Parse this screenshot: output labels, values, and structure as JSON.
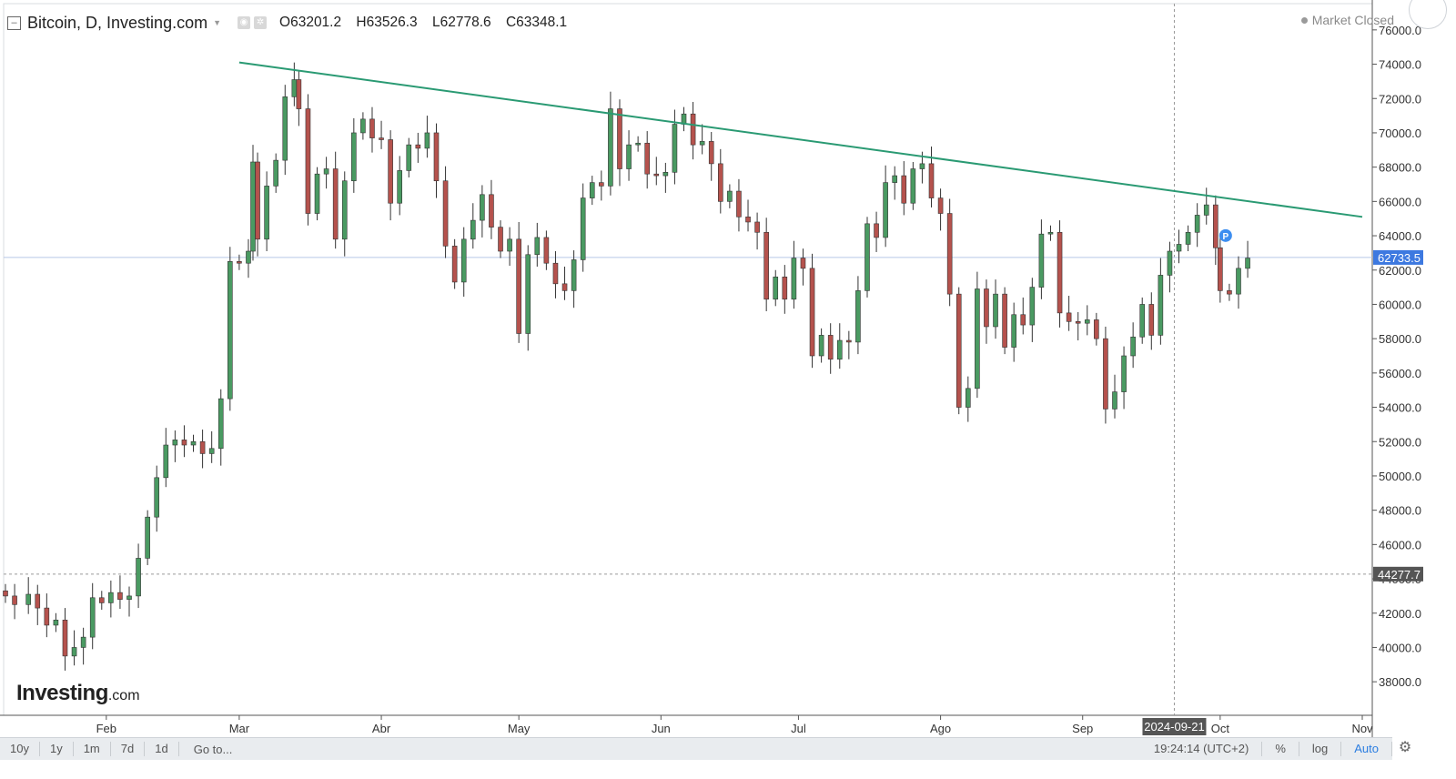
{
  "header": {
    "title": "Bitcoin, D, Investing.com",
    "o_label": "O",
    "o_value": "63201.2",
    "h_label": "H",
    "h_value": "63526.3",
    "l_label": "L",
    "l_value": "62778.6",
    "c_label": "C",
    "c_value": "63348.1",
    "market_status": "Market Closed"
  },
  "logo": {
    "brand": "Investing",
    "suffix": ".com"
  },
  "bottom_bar": {
    "ranges": [
      "10y",
      "1y",
      "1m",
      "7d",
      "1d"
    ],
    "goto": "Go to...",
    "clock": "19:24:14 (UTC+2)",
    "percent": "%",
    "log": "log",
    "auto": "Auto"
  },
  "colors": {
    "up": "#4a9a62",
    "down": "#b5524d",
    "trendline": "#2a9a73",
    "price_tag": "#3d79e0",
    "crosshair_tag": "#555555"
  },
  "chart_data": {
    "type": "candlestick",
    "ylim": [
      37000,
      77000
    ],
    "yticks": [
      38000,
      40000,
      42000,
      44000,
      46000,
      48000,
      50000,
      52000,
      54000,
      56000,
      58000,
      60000,
      62000,
      64000,
      66000,
      68000,
      70000,
      72000,
      74000,
      76000
    ],
    "ytick_labels": [
      "38000.0",
      "40000.0",
      "42000.0",
      "44000.0",
      "46000.0",
      "48000.0",
      "50000.0",
      "52000.0",
      "54000.0",
      "56000.0",
      "58000.0",
      "60000.0",
      "62000.0",
      "64000.0",
      "66000.0",
      "68000.0",
      "70000.0",
      "72000.0",
      "74000.0",
      "76000.0"
    ],
    "x_start": "2024-01-10",
    "x_end": "2024-11-01",
    "month_labels": [
      {
        "date": "2024-02-01",
        "label": "Feb"
      },
      {
        "date": "2024-03-01",
        "label": "Mar"
      },
      {
        "date": "2024-04-01",
        "label": "Abr"
      },
      {
        "date": "2024-05-01",
        "label": "May"
      },
      {
        "date": "2024-06-01",
        "label": "Jun"
      },
      {
        "date": "2024-07-01",
        "label": "Jul"
      },
      {
        "date": "2024-08-01",
        "label": "Ago"
      },
      {
        "date": "2024-09-01",
        "label": "Sep"
      },
      {
        "date": "2024-10-01",
        "label": "Oct"
      },
      {
        "date": "2024-11-01",
        "label": "Nov"
      }
    ],
    "current_price": {
      "value": 62733.5,
      "label": "62733.5"
    },
    "crosshair": {
      "price": 44277.7,
      "price_label": "44277.7",
      "date": "2024-09-21",
      "date_label": "2024-09-21"
    },
    "trendline": [
      {
        "date": "2024-03-01",
        "value": 74100
      },
      {
        "date": "2024-11-01",
        "value": 65100
      }
    ],
    "marker": {
      "date": "2024-10-01",
      "value": 63800,
      "label": "P"
    },
    "closes": [
      [
        "2024-01-10",
        43000
      ],
      [
        "2024-01-12",
        42500
      ],
      [
        "2024-01-15",
        43100
      ],
      [
        "2024-01-17",
        42300
      ],
      [
        "2024-01-19",
        41300
      ],
      [
        "2024-01-21",
        41600
      ],
      [
        "2024-01-23",
        39500
      ],
      [
        "2024-01-25",
        40000
      ],
      [
        "2024-01-27",
        40600
      ],
      [
        "2024-01-29",
        42900
      ],
      [
        "2024-01-31",
        42600
      ],
      [
        "2024-02-02",
        43200
      ],
      [
        "2024-02-04",
        42800
      ],
      [
        "2024-02-06",
        43000
      ],
      [
        "2024-02-08",
        45200
      ],
      [
        "2024-02-10",
        47600
      ],
      [
        "2024-02-12",
        49900
      ],
      [
        "2024-02-14",
        51800
      ],
      [
        "2024-02-16",
        52100
      ],
      [
        "2024-02-18",
        51800
      ],
      [
        "2024-02-20",
        52000
      ],
      [
        "2024-02-22",
        51300
      ],
      [
        "2024-02-24",
        51600
      ],
      [
        "2024-02-26",
        54500
      ],
      [
        "2024-02-28",
        62500
      ],
      [
        "2024-03-01",
        62400
      ],
      [
        "2024-03-03",
        63100
      ],
      [
        "2024-03-04",
        68300
      ],
      [
        "2024-03-05",
        63800
      ],
      [
        "2024-03-07",
        66900
      ],
      [
        "2024-03-09",
        68400
      ],
      [
        "2024-03-11",
        72100
      ],
      [
        "2024-03-13",
        73100
      ],
      [
        "2024-03-14",
        71400
      ],
      [
        "2024-03-16",
        65300
      ],
      [
        "2024-03-18",
        67600
      ],
      [
        "2024-03-20",
        67900
      ],
      [
        "2024-03-22",
        63800
      ],
      [
        "2024-03-24",
        67200
      ],
      [
        "2024-03-26",
        70000
      ],
      [
        "2024-03-28",
        70800
      ],
      [
        "2024-03-30",
        69700
      ],
      [
        "2024-04-01",
        69600
      ],
      [
        "2024-04-03",
        65900
      ],
      [
        "2024-04-05",
        67800
      ],
      [
        "2024-04-07",
        69300
      ],
      [
        "2024-04-09",
        69100
      ],
      [
        "2024-04-11",
        70000
      ],
      [
        "2024-04-13",
        67200
      ],
      [
        "2024-04-15",
        63400
      ],
      [
        "2024-04-17",
        61300
      ],
      [
        "2024-04-19",
        63800
      ],
      [
        "2024-04-21",
        64900
      ],
      [
        "2024-04-23",
        66400
      ],
      [
        "2024-04-25",
        64500
      ],
      [
        "2024-04-27",
        63100
      ],
      [
        "2024-04-29",
        63800
      ],
      [
        "2024-05-01",
        58300
      ],
      [
        "2024-05-03",
        62900
      ],
      [
        "2024-05-05",
        63900
      ],
      [
        "2024-05-07",
        62400
      ],
      [
        "2024-05-09",
        61200
      ],
      [
        "2024-05-11",
        60800
      ],
      [
        "2024-05-13",
        62600
      ],
      [
        "2024-05-15",
        66200
      ],
      [
        "2024-05-17",
        67100
      ],
      [
        "2024-05-19",
        66900
      ],
      [
        "2024-05-21",
        71400
      ],
      [
        "2024-05-23",
        67900
      ],
      [
        "2024-05-25",
        69300
      ],
      [
        "2024-05-27",
        69400
      ],
      [
        "2024-05-29",
        67600
      ],
      [
        "2024-05-31",
        67500
      ],
      [
        "2024-06-02",
        67700
      ],
      [
        "2024-06-04",
        70500
      ],
      [
        "2024-06-06",
        71100
      ],
      [
        "2024-06-08",
        69300
      ],
      [
        "2024-06-10",
        69500
      ],
      [
        "2024-06-12",
        68200
      ],
      [
        "2024-06-14",
        66000
      ],
      [
        "2024-06-16",
        66600
      ],
      [
        "2024-06-18",
        65100
      ],
      [
        "2024-06-20",
        64800
      ],
      [
        "2024-06-22",
        64200
      ],
      [
        "2024-06-24",
        60300
      ],
      [
        "2024-06-26",
        61600
      ],
      [
        "2024-06-28",
        60300
      ],
      [
        "2024-06-30",
        62700
      ],
      [
        "2024-07-02",
        62100
      ],
      [
        "2024-07-04",
        57000
      ],
      [
        "2024-07-06",
        58200
      ],
      [
        "2024-07-08",
        56800
      ],
      [
        "2024-07-10",
        57900
      ],
      [
        "2024-07-12",
        57800
      ],
      [
        "2024-07-14",
        60800
      ],
      [
        "2024-07-16",
        64700
      ],
      [
        "2024-07-18",
        63900
      ],
      [
        "2024-07-20",
        67100
      ],
      [
        "2024-07-22",
        67500
      ],
      [
        "2024-07-24",
        65900
      ],
      [
        "2024-07-26",
        67900
      ],
      [
        "2024-07-28",
        68200
      ],
      [
        "2024-07-30",
        66200
      ],
      [
        "2024-08-01",
        65300
      ],
      [
        "2024-08-03",
        60600
      ],
      [
        "2024-08-05",
        54000
      ],
      [
        "2024-08-07",
        55100
      ],
      [
        "2024-08-09",
        60900
      ],
      [
        "2024-08-11",
        58700
      ],
      [
        "2024-08-13",
        60600
      ],
      [
        "2024-08-15",
        57500
      ],
      [
        "2024-08-17",
        59400
      ],
      [
        "2024-08-19",
        58800
      ],
      [
        "2024-08-21",
        61000
      ],
      [
        "2024-08-23",
        64100
      ],
      [
        "2024-08-25",
        64200
      ],
      [
        "2024-08-27",
        59500
      ],
      [
        "2024-08-29",
        59000
      ],
      [
        "2024-08-31",
        58900
      ],
      [
        "2024-09-02",
        59100
      ],
      [
        "2024-09-04",
        58000
      ],
      [
        "2024-09-06",
        53900
      ],
      [
        "2024-09-08",
        54900
      ],
      [
        "2024-09-10",
        57000
      ],
      [
        "2024-09-12",
        58100
      ],
      [
        "2024-09-14",
        60000
      ],
      [
        "2024-09-16",
        58200
      ],
      [
        "2024-09-18",
        61700
      ],
      [
        "2024-09-20",
        63100
      ],
      [
        "2024-09-22",
        63500
      ],
      [
        "2024-09-24",
        64200
      ],
      [
        "2024-09-26",
        65200
      ],
      [
        "2024-09-28",
        65800
      ],
      [
        "2024-09-30",
        63300
      ],
      [
        "2024-10-01",
        60800
      ],
      [
        "2024-10-03",
        60600
      ],
      [
        "2024-10-05",
        62100
      ],
      [
        "2024-10-07",
        62700
      ]
    ]
  }
}
